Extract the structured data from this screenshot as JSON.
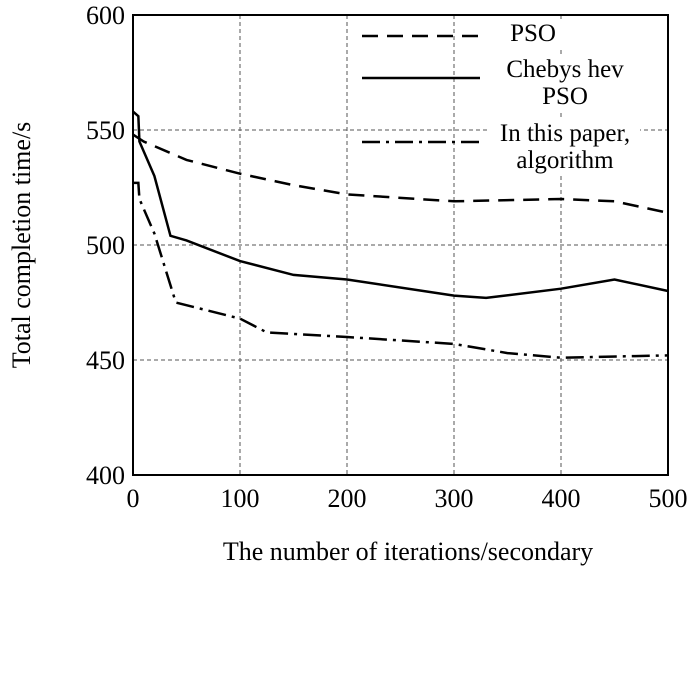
{
  "chart_data": {
    "type": "line",
    "xlabel": "The number of iterations/secondary",
    "ylabel": "Total completion time/s",
    "xlim": [
      0,
      500
    ],
    "ylim": [
      400,
      600
    ],
    "xticks": [
      0,
      100,
      200,
      300,
      400,
      500
    ],
    "yticks": [
      400,
      450,
      500,
      550,
      600
    ],
    "grid": true,
    "legend": "upper right",
    "series": [
      {
        "name": "PSO",
        "color": "#000000",
        "dash": "dashed",
        "x": [
          0,
          10,
          50,
          100,
          150,
          200,
          300,
          400,
          450,
          500
        ],
        "values": [
          548,
          545,
          537,
          531,
          526,
          522,
          519,
          520,
          519,
          514
        ]
      },
      {
        "name": "Chebys hev PSO",
        "color": "#000000",
        "dash": "solid",
        "x": [
          0,
          5,
          6,
          20,
          35,
          50,
          100,
          150,
          200,
          300,
          330,
          400,
          450,
          500
        ],
        "values": [
          558,
          556,
          545,
          530,
          504,
          502,
          493,
          487,
          485,
          478,
          477,
          481,
          485,
          480
        ]
      },
      {
        "name": "In this paper, algorithm",
        "color": "#000000",
        "dash": "dashdot",
        "x": [
          0,
          5,
          6,
          20,
          40,
          100,
          125,
          200,
          300,
          350,
          400,
          500
        ],
        "values": [
          527,
          527,
          520,
          505,
          475,
          468,
          462,
          460,
          457,
          453,
          451,
          452
        ]
      }
    ]
  }
}
